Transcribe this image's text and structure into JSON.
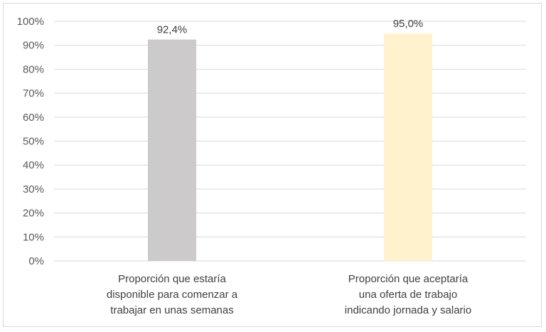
{
  "chart_data": {
    "type": "bar",
    "categories": [
      [
        "Proporción que estaría",
        "disponible para comenzar a",
        "trabajar en unas semanas"
      ],
      [
        "Proporción que aceptaría",
        "una oferta de trabajo",
        "indicando jornada y salario"
      ]
    ],
    "values": [
      92.4,
      95.0
    ],
    "data_labels": [
      "92,4%",
      "95,0%"
    ],
    "bar_colors": [
      "#cccaca",
      "#fff2cc"
    ],
    "ylim": [
      0,
      100
    ],
    "y_ticks": [
      0,
      10,
      20,
      30,
      40,
      50,
      60,
      70,
      80,
      90,
      100
    ],
    "y_tick_labels": [
      "0%",
      "10%",
      "20%",
      "30%",
      "40%",
      "50%",
      "60%",
      "70%",
      "80%",
      "90%",
      "100%"
    ],
    "grid": true,
    "legend": "none"
  }
}
